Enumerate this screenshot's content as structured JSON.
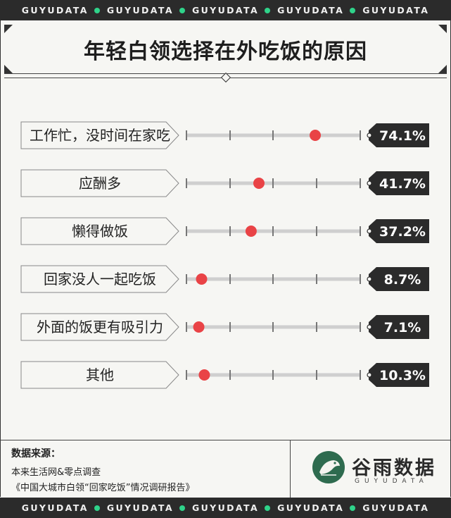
{
  "strip": {
    "items": [
      "GUYUDATA",
      "GUYUDATA",
      "GUYUDATA",
      "GUYUDATA",
      "GUYUDATA"
    ],
    "dot_color": "#2fd38a"
  },
  "title": "年轻白领选择在外吃饭的原因",
  "chart_data": {
    "type": "dot",
    "title": "年轻白领选择在外吃饭的原因",
    "categories": [
      "工作忙，没时间在家吃",
      "应酬多",
      "懒得做饭",
      "回家没人一起吃饭",
      "外面的饭更有吸引力",
      "其他"
    ],
    "values": [
      74.1,
      41.7,
      37.2,
      8.7,
      7.1,
      10.3
    ],
    "value_labels": [
      "74.1%",
      "41.7%",
      "37.2%",
      "8.7%",
      "7.1%",
      "10.3%"
    ],
    "xlim": [
      0,
      100
    ],
    "grid": false,
    "dot_color": "#e94346",
    "track_color": "#cfcfcf",
    "tag_color": "#2b2b2b"
  },
  "footer": {
    "source_label": "数据来源：",
    "source_lines": [
      "本来生活网&零点调查",
      "《中国大城市白领“回家吃饭”情况调研报告》"
    ],
    "brand_name": "谷雨数据",
    "brand_sub": "GUYUDATA",
    "brand_color": "#2e6b4f"
  }
}
